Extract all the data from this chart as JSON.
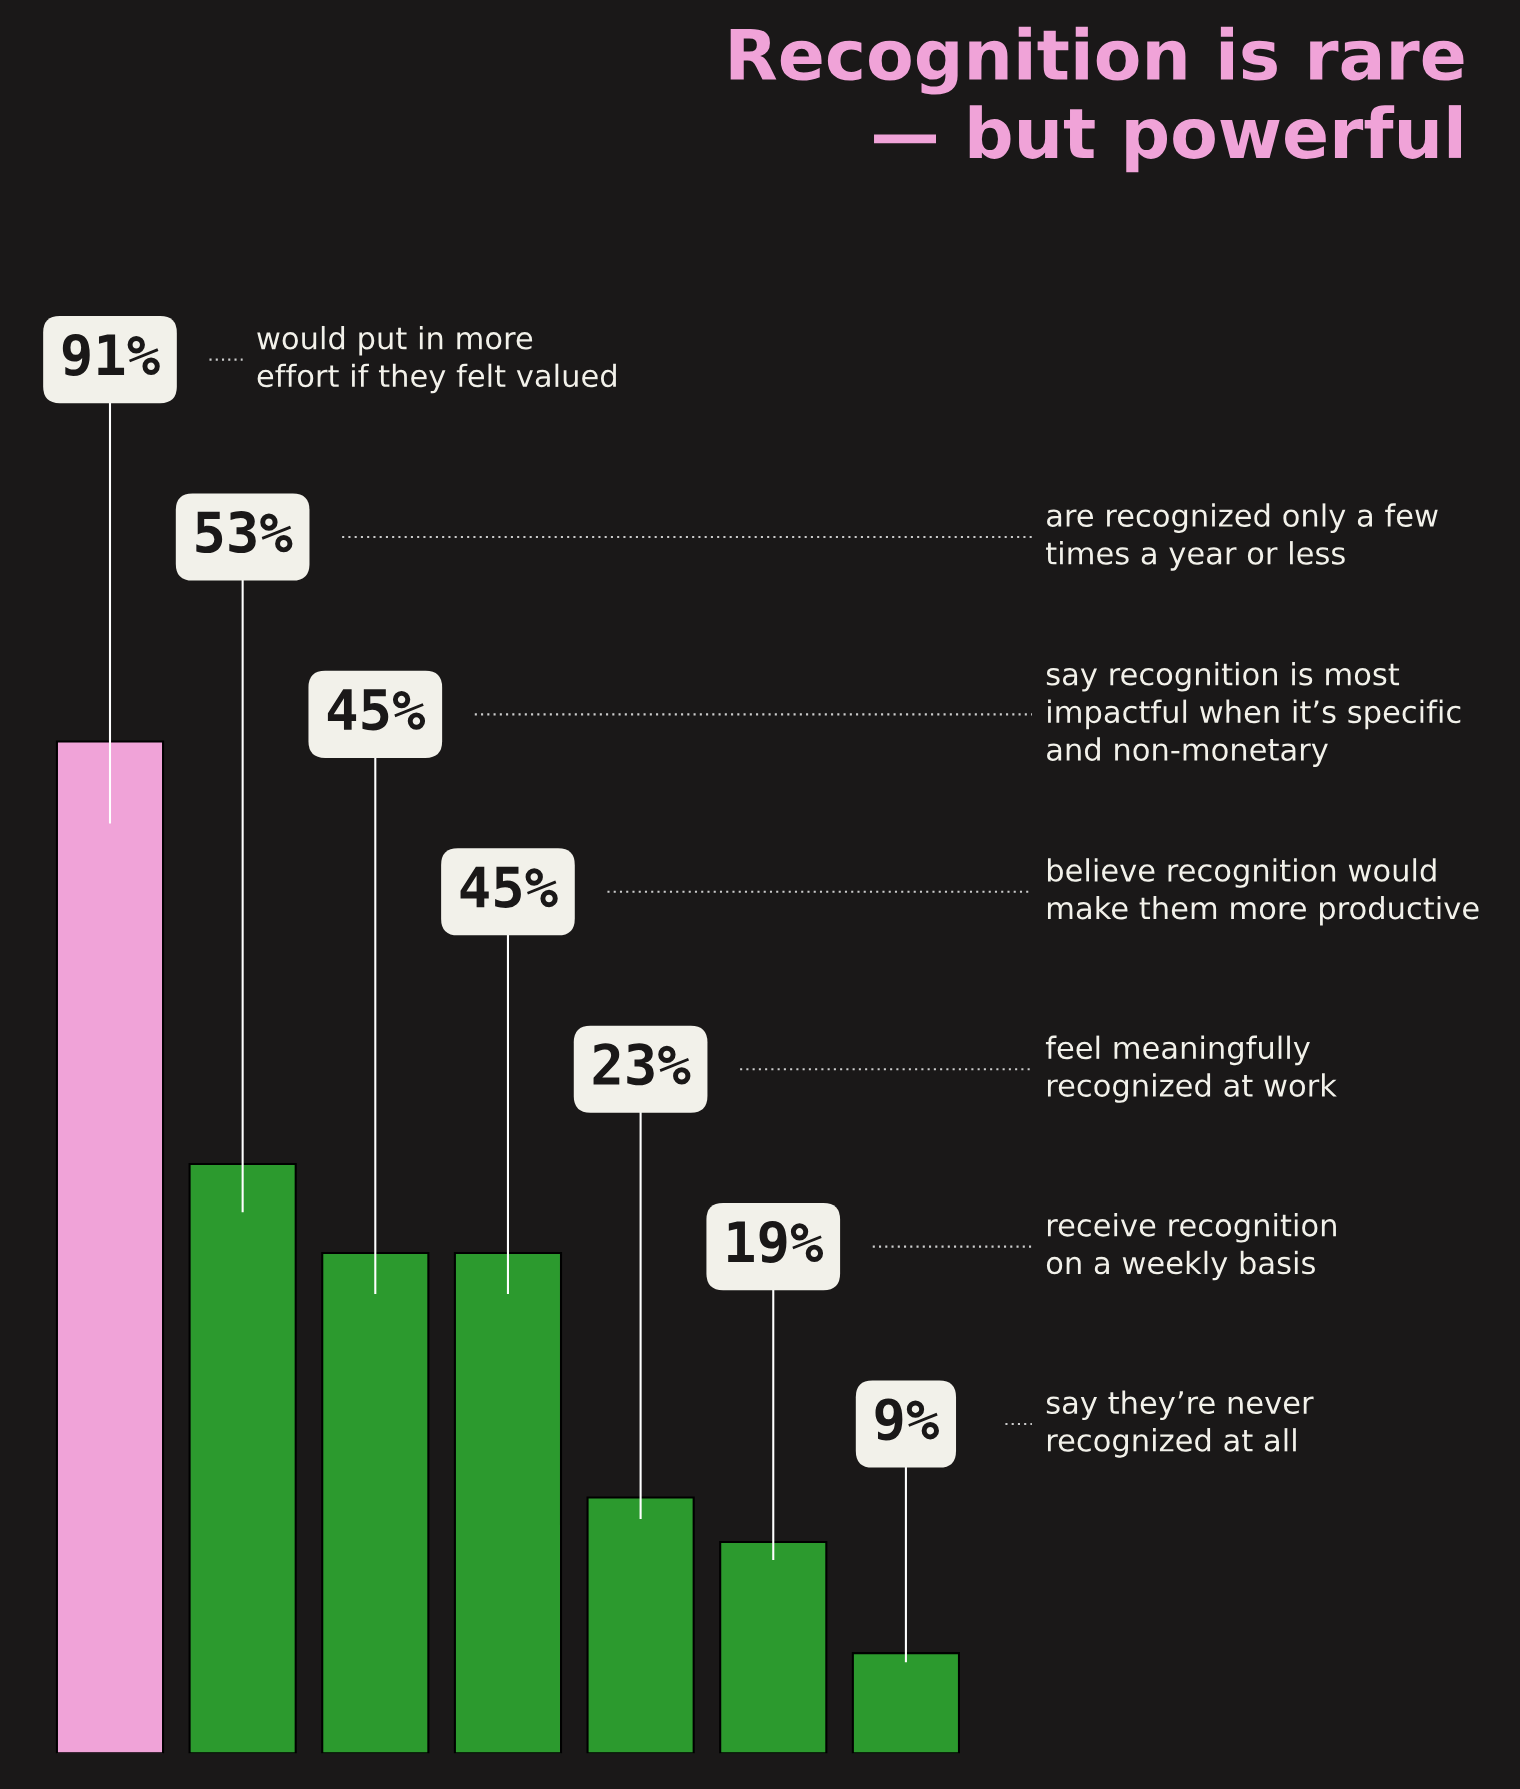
{
  "chart_data": {
    "type": "bar",
    "title": "Recognition is rare\n— but powerful",
    "categories": [
      null,
      null,
      null,
      null,
      null,
      null,
      null
    ],
    "annotations": [
      "would put in more\neffort if they felt valued",
      "are recognized only a few\ntimes a year or less",
      "say recognition is most\nimpactful when it’s specific\nand non-monetary",
      "believe recognition would\nmake them more productive",
      "feel meaningfully\nrecognized at work",
      "receive recognition\non a weekly basis",
      "say they’re never\nrecognized at all"
    ],
    "values": [
      91,
      53,
      45,
      45,
      23,
      19,
      9
    ],
    "value_labels": [
      "91%",
      "53%",
      "45%",
      "45%",
      "23%",
      "19%",
      "9%"
    ],
    "colors": [
      "#f0a3d8",
      "#2c9a2e",
      "#2c9a2e",
      "#2c9a2e",
      "#2c9a2e",
      "#2c9a2e",
      "#2c9a2e"
    ]
  }
}
